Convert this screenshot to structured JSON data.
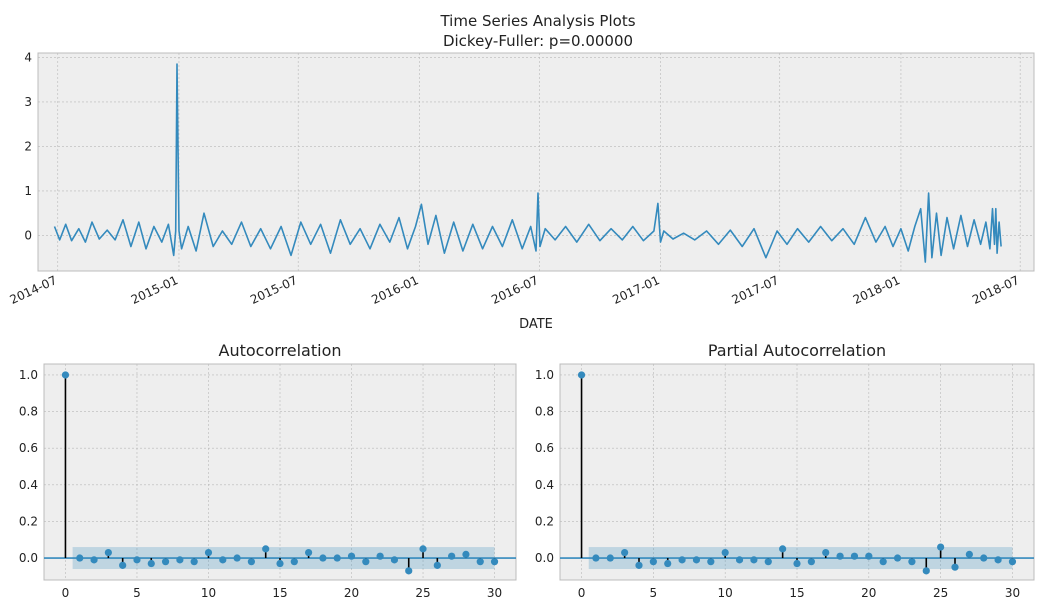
{
  "figure": {
    "title_line1": "Time Series Analysis Plots",
    "title_line2": "Dickey-Fuller: p=0.00000"
  },
  "colors": {
    "line": "#348ABD",
    "axes_bg": "#EEEEEE",
    "grid": "#B8B8B8",
    "conf_band": "#348ABD",
    "stem": "#000000",
    "zero_line": "#348ABD"
  },
  "chart_data": [
    {
      "type": "line",
      "title": "",
      "xlabel": "DATE",
      "ylabel": "",
      "ylim": [
        -0.8,
        4.1
      ],
      "xlim": [
        "2014-06-01",
        "2018-07-22"
      ],
      "x_ticks": [
        "2014-07-01",
        "2015-01-01",
        "2015-07-01",
        "2016-01-01",
        "2016-07-01",
        "2017-01-01",
        "2017-07-01",
        "2018-01-01",
        "2018-07-01"
      ],
      "x_tick_labels": [
        "2014-07",
        "2015-01",
        "2015-07",
        "2016-01",
        "2016-07",
        "2017-01",
        "2017-07",
        "2018-01",
        "2018-07"
      ],
      "y_ticks": [
        0,
        1,
        2,
        3,
        4
      ],
      "y_tick_labels": [
        "0",
        "1",
        "2",
        "3",
        "4"
      ],
      "grid": true,
      "series": [
        {
          "x": [
            "2014-06-26",
            "2014-07-04",
            "2014-07-13",
            "2014-07-22",
            "2014-08-02",
            "2014-08-12",
            "2014-08-22",
            "2014-09-02",
            "2014-09-14",
            "2014-09-26",
            "2014-10-08",
            "2014-10-20",
            "2014-11-01",
            "2014-11-12",
            "2014-11-24",
            "2014-12-06",
            "2014-12-16",
            "2014-12-24",
            "2014-12-27",
            "2014-12-29",
            "2015-01-01",
            "2015-01-05",
            "2015-01-15",
            "2015-01-27",
            "2015-02-08",
            "2015-02-22",
            "2015-03-08",
            "2015-03-22",
            "2015-04-06",
            "2015-04-20",
            "2015-05-05",
            "2015-05-20",
            "2015-06-05",
            "2015-06-20",
            "2015-07-05",
            "2015-07-20",
            "2015-08-04",
            "2015-08-19",
            "2015-09-03",
            "2015-09-18",
            "2015-10-03",
            "2015-10-18",
            "2015-11-02",
            "2015-11-17",
            "2015-12-01",
            "2015-12-14",
            "2015-12-26",
            "2016-01-04",
            "2016-01-14",
            "2016-01-26",
            "2016-02-08",
            "2016-02-22",
            "2016-03-07",
            "2016-03-22",
            "2016-04-06",
            "2016-04-21",
            "2016-05-06",
            "2016-05-21",
            "2016-06-05",
            "2016-06-18",
            "2016-06-26",
            "2016-06-29",
            "2016-07-02",
            "2016-07-10",
            "2016-07-25",
            "2016-08-10",
            "2016-08-27",
            "2016-09-14",
            "2016-10-01",
            "2016-10-18",
            "2016-11-04",
            "2016-11-20",
            "2016-12-06",
            "2016-12-22",
            "2016-12-28",
            "2017-01-01",
            "2017-01-06",
            "2017-01-20",
            "2017-02-05",
            "2017-02-22",
            "2017-03-12",
            "2017-03-30",
            "2017-04-17",
            "2017-05-05",
            "2017-05-23",
            "2017-06-10",
            "2017-06-27",
            "2017-07-12",
            "2017-07-28",
            "2017-08-14",
            "2017-09-01",
            "2017-09-18",
            "2017-10-05",
            "2017-10-22",
            "2017-11-08",
            "2017-11-24",
            "2017-12-08",
            "2017-12-20",
            "2018-01-01",
            "2018-01-12",
            "2018-01-22",
            "2018-01-31",
            "2018-02-07",
            "2018-02-12",
            "2018-02-17",
            "2018-02-24",
            "2018-03-03",
            "2018-03-12",
            "2018-03-22",
            "2018-04-02",
            "2018-04-12",
            "2018-04-22",
            "2018-05-02",
            "2018-05-10",
            "2018-05-16",
            "2018-05-20",
            "2018-05-23",
            "2018-05-25",
            "2018-05-27",
            "2018-05-30",
            "2018-06-02"
          ],
          "y": [
            0.2,
            -0.1,
            0.25,
            -0.12,
            0.15,
            -0.15,
            0.3,
            -0.08,
            0.12,
            -0.1,
            0.35,
            -0.25,
            0.3,
            -0.3,
            0.2,
            -0.15,
            0.25,
            -0.45,
            0.1,
            3.85,
            0.1,
            -0.3,
            0.2,
            -0.35,
            0.5,
            -0.25,
            0.1,
            -0.2,
            0.3,
            -0.25,
            0.15,
            -0.3,
            0.2,
            -0.45,
            0.3,
            -0.2,
            0.25,
            -0.4,
            0.35,
            -0.2,
            0.15,
            -0.3,
            0.25,
            -0.15,
            0.4,
            -0.3,
            0.2,
            0.7,
            -0.2,
            0.45,
            -0.4,
            0.3,
            -0.35,
            0.25,
            -0.3,
            0.2,
            -0.25,
            0.35,
            -0.3,
            0.2,
            -0.35,
            0.95,
            -0.25,
            0.15,
            -0.1,
            0.2,
            -0.15,
            0.25,
            -0.12,
            0.15,
            -0.1,
            0.2,
            -0.12,
            0.1,
            0.72,
            -0.15,
            0.1,
            -0.08,
            0.05,
            -0.1,
            0.1,
            -0.2,
            0.12,
            -0.25,
            0.15,
            -0.5,
            0.1,
            -0.2,
            0.15,
            -0.15,
            0.2,
            -0.12,
            0.15,
            -0.2,
            0.4,
            -0.15,
            0.2,
            -0.25,
            0.15,
            -0.35,
            0.2,
            0.6,
            -0.6,
            0.95,
            -0.5,
            0.5,
            -0.45,
            0.4,
            -0.3,
            0.45,
            -0.25,
            0.35,
            -0.2,
            0.3,
            -0.3,
            0.6,
            -0.2,
            0.6,
            -0.4,
            0.3,
            -0.25
          ]
        }
      ]
    },
    {
      "type": "scatter",
      "title": "Autocorrelation",
      "xlabel": "",
      "ylabel": "",
      "xlim": [
        -1.5,
        31.5
      ],
      "ylim": [
        -0.12,
        1.06
      ],
      "x_ticks": [
        0,
        5,
        10,
        15,
        20,
        25,
        30
      ],
      "x_tick_labels": [
        "0",
        "5",
        "10",
        "15",
        "20",
        "25",
        "30"
      ],
      "y_ticks": [
        0.0,
        0.2,
        0.4,
        0.6,
        0.8,
        1.0
      ],
      "y_tick_labels": [
        "0.0",
        "0.2",
        "0.4",
        "0.6",
        "0.8",
        "1.0"
      ],
      "grid": true,
      "confidence_interval": 0.06,
      "lags": [
        0,
        1,
        2,
        3,
        4,
        5,
        6,
        7,
        8,
        9,
        10,
        11,
        12,
        13,
        14,
        15,
        16,
        17,
        18,
        19,
        20,
        21,
        22,
        23,
        24,
        25,
        26,
        27,
        28,
        29,
        30
      ],
      "values": [
        1.0,
        0.0,
        -0.01,
        0.03,
        -0.04,
        -0.01,
        -0.03,
        -0.02,
        -0.01,
        -0.02,
        0.03,
        -0.01,
        0.0,
        -0.02,
        0.05,
        -0.03,
        -0.02,
        0.03,
        0.0,
        0.0,
        0.01,
        -0.02,
        0.01,
        -0.01,
        -0.07,
        0.05,
        -0.04,
        0.01,
        0.02,
        -0.02,
        -0.02
      ]
    },
    {
      "type": "scatter",
      "title": "Partial Autocorrelation",
      "xlabel": "",
      "ylabel": "",
      "xlim": [
        -1.5,
        31.5
      ],
      "ylim": [
        -0.12,
        1.06
      ],
      "x_ticks": [
        0,
        5,
        10,
        15,
        20,
        25,
        30
      ],
      "x_tick_labels": [
        "0",
        "5",
        "10",
        "15",
        "20",
        "25",
        "30"
      ],
      "y_ticks": [
        0.0,
        0.2,
        0.4,
        0.6,
        0.8,
        1.0
      ],
      "y_tick_labels": [
        "0.0",
        "0.2",
        "0.4",
        "0.6",
        "0.8",
        "1.0"
      ],
      "grid": true,
      "confidence_interval": 0.06,
      "lags": [
        0,
        1,
        2,
        3,
        4,
        5,
        6,
        7,
        8,
        9,
        10,
        11,
        12,
        13,
        14,
        15,
        16,
        17,
        18,
        19,
        20,
        21,
        22,
        23,
        24,
        25,
        26,
        27,
        28,
        29,
        30
      ],
      "values": [
        1.0,
        0.0,
        0.0,
        0.03,
        -0.04,
        -0.02,
        -0.03,
        -0.01,
        -0.01,
        -0.02,
        0.03,
        -0.01,
        -0.01,
        -0.02,
        0.05,
        -0.03,
        -0.02,
        0.03,
        0.01,
        0.01,
        0.01,
        -0.02,
        0.0,
        -0.02,
        -0.07,
        0.06,
        -0.05,
        0.02,
        0.0,
        -0.01,
        -0.02
      ]
    }
  ]
}
